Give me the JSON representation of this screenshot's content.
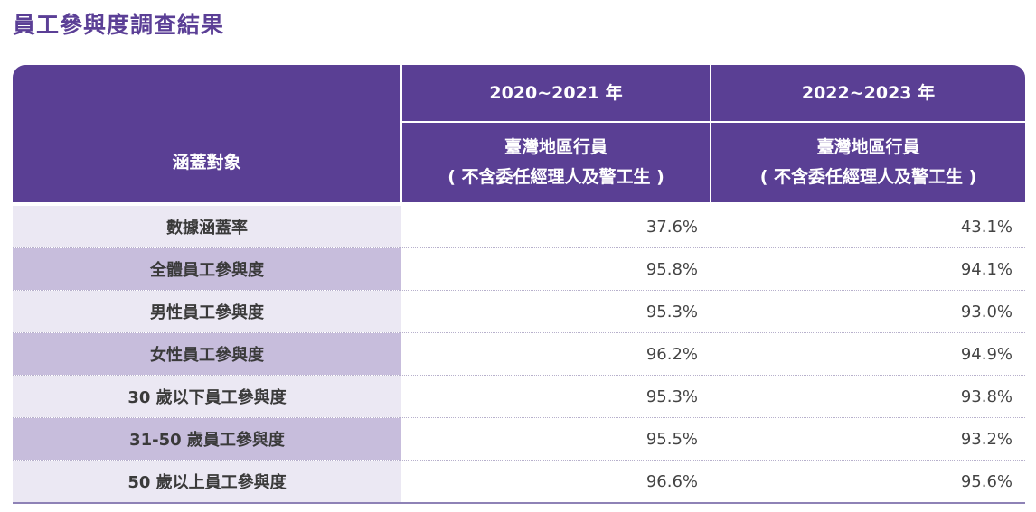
{
  "title": "員工參與度調查結果",
  "header": {
    "target_label": "涵蓋對象",
    "year1": "2020~2021 年",
    "year2": "2022~2023 年",
    "scope1_line1": "臺灣地區行員",
    "scope1_line2": "( 不含委任經理人及警工生 )",
    "scope2_line1": "臺灣地區行員",
    "scope2_line2": "( 不含委任經理人及警工生 )"
  },
  "rows": [
    {
      "label": "數據涵蓋率",
      "v1": "37.6%",
      "v2": "43.1%"
    },
    {
      "label": "全體員工參與度",
      "v1": "95.8%",
      "v2": "94.1%"
    },
    {
      "label": "男性員工參與度",
      "v1": "95.3%",
      "v2": "93.0%"
    },
    {
      "label": "女性員工參與度",
      "v1": "96.2%",
      "v2": "94.9%"
    },
    {
      "label": "30 歲以下員工參與度",
      "v1": "95.3%",
      "v2": "93.8%"
    },
    {
      "label": "31-50 歲員工參與度",
      "v1": "95.5%",
      "v2": "93.2%"
    },
    {
      "label": "50 歲以上員工參與度",
      "v1": "96.6%",
      "v2": "95.6%"
    }
  ]
}
